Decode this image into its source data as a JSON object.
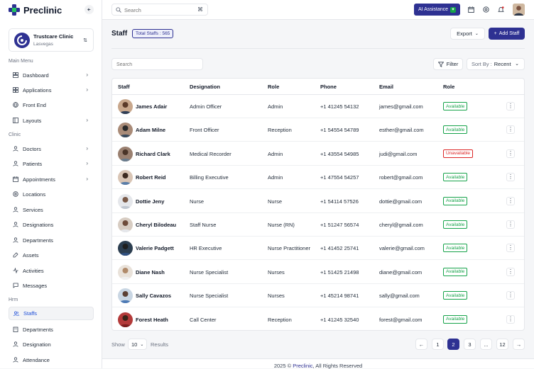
{
  "brand": {
    "name": "Preclinic"
  },
  "clinic": {
    "name": "Trustcare Clinic",
    "location": "Lasvegas"
  },
  "sidebar": {
    "sections": {
      "main": "Main Menu",
      "clinic": "Clinic",
      "hrm": "Hrm"
    },
    "main_items": [
      {
        "label": "Dashboard",
        "icon": "dashboard-icon"
      },
      {
        "label": "Applications",
        "icon": "applications-icon"
      },
      {
        "label": "Front End",
        "icon": "globe-icon"
      },
      {
        "label": "Layouts",
        "icon": "layout-icon"
      }
    ],
    "clinic_items": [
      {
        "label": "Doctors"
      },
      {
        "label": "Patients"
      },
      {
        "label": "Appointments"
      },
      {
        "label": "Locations"
      },
      {
        "label": "Services"
      },
      {
        "label": "Designations"
      },
      {
        "label": "Departments"
      },
      {
        "label": "Assets"
      },
      {
        "label": "Activities"
      },
      {
        "label": "Messages"
      }
    ],
    "hrm_items": [
      {
        "label": "Staffs"
      },
      {
        "label": "Departments"
      },
      {
        "label": "Designation"
      },
      {
        "label": "Attendance"
      }
    ]
  },
  "topbar": {
    "search_placeholder": "Search",
    "shortcut": "⌘",
    "ai_label": "AI Assistance"
  },
  "page": {
    "title": "Staff",
    "count_label": "Total Staffs : 565",
    "export_label": "Export",
    "add_label": "Add Staff",
    "list_search_placeholder": "Search",
    "filter_label": "Filter",
    "sort_label": "Sort By :",
    "sort_value": "Recent"
  },
  "table": {
    "headers": [
      "Staff",
      "Designation",
      "Role",
      "Phone",
      "Email",
      "Role"
    ],
    "rows": [
      {
        "name": "James Adair",
        "designation": "Admin Officer",
        "role": "Admin",
        "phone": "+1 41245 54132",
        "email": "james@gmail.com",
        "status": "Available"
      },
      {
        "name": "Adam Milne",
        "designation": "Front Officer",
        "role": "Reception",
        "phone": "+1 54554 54789",
        "email": "esther@gmail.com",
        "status": "Available"
      },
      {
        "name": "Richard Clark",
        "designation": "Medical Recorder",
        "role": "Admin",
        "phone": "+1  43554 54985",
        "email": "judi@gmail.com",
        "status": "Unavailable"
      },
      {
        "name": "Robert Reid",
        "designation": "Billing Executive",
        "role": "Admin",
        "phone": "+1 47554 54257",
        "email": "robert@gmail.com",
        "status": "Available"
      },
      {
        "name": "Dottie Jeny",
        "designation": "Nurse",
        "role": "Nurse",
        "phone": "+1 54114 57526",
        "email": "dottie@gmail.com",
        "status": "Available"
      },
      {
        "name": "Cheryl Bilodeau",
        "designation": "Staff Nurse",
        "role": "Nurse (RN)",
        "phone": "+1 51247 56574",
        "email": "cheryl@gmail.com",
        "status": "Available"
      },
      {
        "name": "Valerie Padgett",
        "designation": "HR Executive",
        "role": "Nurse Practitioner",
        "phone": "+1 41452 25741",
        "email": "valerie@gmail.com",
        "status": "Available"
      },
      {
        "name": "Diane Nash",
        "designation": "Nurse Specialist",
        "role": "Nurses",
        "phone": "+1 51425 21498",
        "email": "diane@gmail.com",
        "status": "Available"
      },
      {
        "name": "Sally Cavazos",
        "designation": "Nurse Specialist",
        "role": "Nurses",
        "phone": "+1 45214 98741",
        "email": "sally@gmail.com",
        "status": "Available"
      },
      {
        "name": "Forest Heath",
        "designation": "Call Center",
        "role": "Reception",
        "phone": "+1 41245 32540",
        "email": "forest@gmail.com",
        "status": "Available"
      }
    ]
  },
  "pagination": {
    "show_label": "Show",
    "page_size": "10",
    "results_label": "Results",
    "pages": [
      "1",
      "2",
      "3",
      "...",
      "12"
    ],
    "current": "2"
  },
  "footer": {
    "prefix": "2025 ©",
    "brand": "Preclinic",
    "suffix": ", All Rights Reserved"
  },
  "colors": {
    "primary": "#2e3192",
    "success": "#16a34a",
    "danger": "#dc2626"
  }
}
